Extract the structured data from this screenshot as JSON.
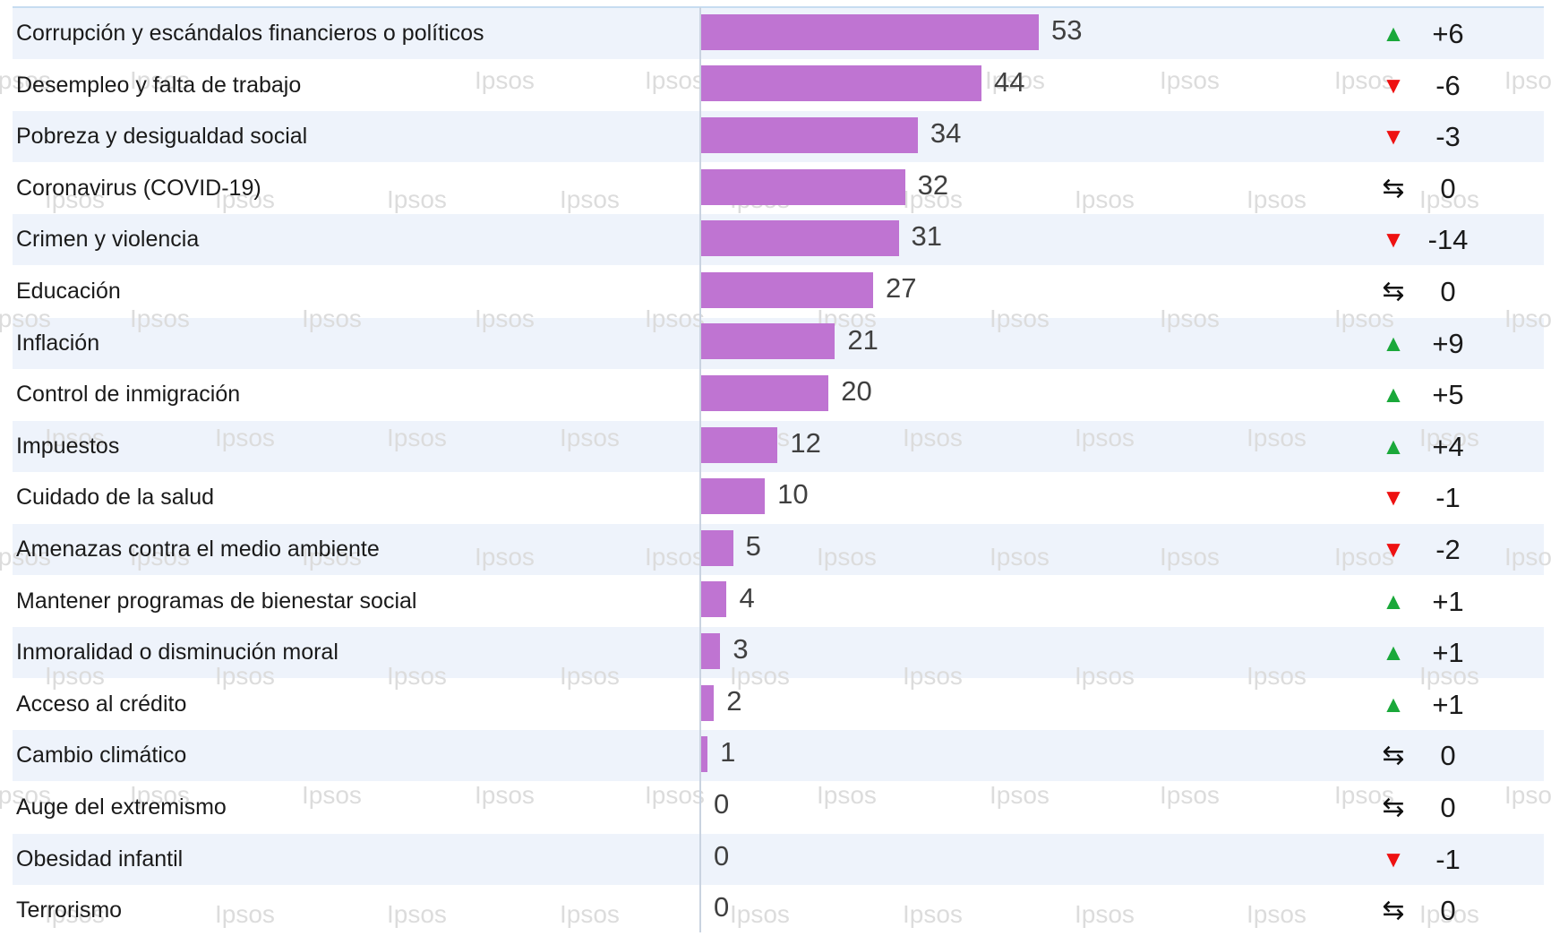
{
  "chart_data": {
    "type": "bar",
    "orientation": "horizontal",
    "xlim": [
      0,
      53
    ],
    "watermark_text": "Ipsos",
    "colors": {
      "bar": "#bf74d2",
      "row_band": "#eef3fb",
      "up": "#1aa83a",
      "down": "#ee1111",
      "neutral": "#111111"
    },
    "rows": [
      {
        "category": "Corrupción y escándalos financieros o políticos",
        "value": 53,
        "display": "53",
        "change": "+6",
        "trend": "up"
      },
      {
        "category": "Desempleo y falta de trabajo",
        "value": 44,
        "display": "44",
        "change": "-6",
        "trend": "down"
      },
      {
        "category": "Pobreza y desigualdad social",
        "value": 34,
        "display": "34",
        "change": "-3",
        "trend": "down"
      },
      {
        "category": "Coronavirus (COVID-19)",
        "value": 32,
        "display": "32",
        "change": "0",
        "trend": "same"
      },
      {
        "category": "Crimen y violencia",
        "value": 31,
        "display": "31",
        "change": "-14",
        "trend": "down"
      },
      {
        "category": "Educación",
        "value": 27,
        "display": "27",
        "change": "0",
        "trend": "same"
      },
      {
        "category": "Inflación",
        "value": 21,
        "display": "21",
        "change": "+9",
        "trend": "up"
      },
      {
        "category": "Control de inmigración",
        "value": 20,
        "display": "20",
        "change": "+5",
        "trend": "up"
      },
      {
        "category": "Impuestos",
        "value": 12,
        "display": "12",
        "change": "+4",
        "trend": "up"
      },
      {
        "category": "Cuidado de la salud",
        "value": 10,
        "display": "10",
        "change": "-1",
        "trend": "down"
      },
      {
        "category": "Amenazas contra el medio ambiente",
        "value": 5,
        "display": "5",
        "change": "-2",
        "trend": "down"
      },
      {
        "category": "Mantener programas de bienestar social",
        "value": 4,
        "display": "4",
        "change": "+1",
        "trend": "up"
      },
      {
        "category": "Inmoralidad o disminución moral",
        "value": 3,
        "display": "3",
        "change": "+1",
        "trend": "up"
      },
      {
        "category": "Acceso al crédito",
        "value": 2,
        "display": "2",
        "change": "+1",
        "trend": "up"
      },
      {
        "category": "Cambio climático",
        "value": 1,
        "display": "1",
        "change": "0",
        "trend": "same"
      },
      {
        "category": "Auge del extremismo",
        "value": 0,
        "display": "0",
        "change": "0",
        "trend": "same"
      },
      {
        "category": "Obesidad infantil",
        "value": 0,
        "display": "0",
        "change": "-1",
        "trend": "down"
      },
      {
        "category": "Terrorismo",
        "value": 0,
        "display": "0",
        "change": "0",
        "trend": "same"
      }
    ]
  }
}
